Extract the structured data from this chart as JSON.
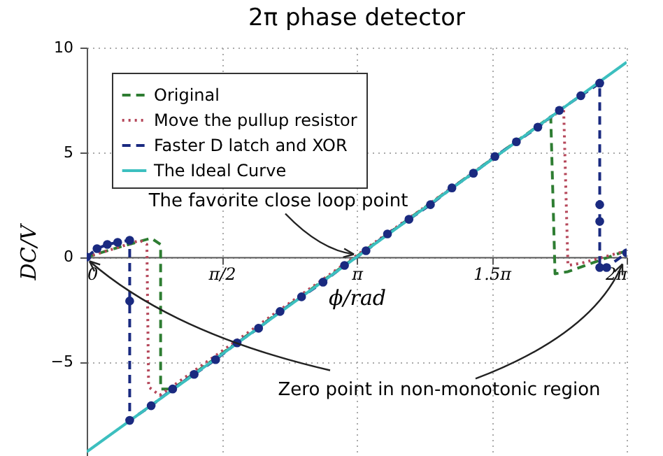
{
  "chart_data": {
    "type": "line",
    "title": "2π phase detector",
    "xlabel": "ϕ/rad",
    "ylabel": "DC/V",
    "xlim": [
      0,
      6.2832
    ],
    "ylim": [
      -9.5,
      10
    ],
    "xticks": [
      {
        "value": 0,
        "label": "0"
      },
      {
        "value": 1.5708,
        "label": "π/2"
      },
      {
        "value": 3.1416,
        "label": "π"
      },
      {
        "value": 4.7124,
        "label": "1.5π"
      },
      {
        "value": 6.2832,
        "label": "2π"
      }
    ],
    "yticks": [
      -5,
      0,
      5,
      10
    ],
    "grid": true,
    "legend": "top left",
    "annotations": [
      {
        "text": "The favorite close loop point",
        "x": 3.1416,
        "y": 0
      },
      {
        "text": "Zero point in non-monotonic region",
        "x": 0,
        "y": 0
      }
    ],
    "series": [
      {
        "name": "Original",
        "color": "#2e7d32",
        "line_style": "dashed",
        "marker": "none",
        "x": [
          0,
          0.4,
          0.75,
          0.86,
          0.86,
          1.0,
          5.4,
          5.45,
          5.6,
          6.2832
        ],
        "values": [
          0,
          0.5,
          0.9,
          0.6,
          -6.3,
          -6.3,
          6.7,
          -0.8,
          -0.7,
          0.3
        ]
      },
      {
        "name": "Move the pullup resistor",
        "color": "#b5475a",
        "line_style": "dotted",
        "marker": "none",
        "x": [
          0,
          0.4,
          0.62,
          0.7,
          0.72,
          0.85,
          5.55,
          5.6,
          5.75,
          6.2832
        ],
        "values": [
          0,
          0.5,
          0.8,
          0.6,
          -6.2,
          -6.6,
          7.1,
          -0.4,
          -0.3,
          0.3
        ]
      },
      {
        "name": "Faster D latch and XOR",
        "color": "#1a2a80",
        "line_style": "dashed",
        "marker": "circle",
        "x": [
          0,
          0.12,
          0.24,
          0.36,
          0.5,
          0.5,
          0.5,
          0.75,
          1,
          1.25,
          1.5,
          1.75,
          2,
          2.25,
          2.5,
          2.75,
          3,
          3.25,
          3.5,
          3.75,
          4,
          4.25,
          4.5,
          4.75,
          5,
          5.25,
          5.5,
          5.75,
          5.97,
          5.97,
          5.97,
          5.97,
          6.05,
          6.2832
        ],
        "values": [
          0,
          0.4,
          0.6,
          0.7,
          0.8,
          -2.1,
          -7.8,
          -7.1,
          -6.3,
          -5.6,
          -4.9,
          -4.1,
          -3.4,
          -2.6,
          -1.9,
          -1.2,
          -0.4,
          0.3,
          1.1,
          1.8,
          2.5,
          3.3,
          4,
          4.8,
          5.5,
          6.2,
          7,
          7.7,
          8.3,
          2.5,
          1.7,
          -0.5,
          -0.5,
          0.2
        ]
      },
      {
        "name": "The Ideal Curve",
        "color": "#3cbfbf",
        "line_style": "solid",
        "marker": "none",
        "x": [
          0,
          6.2832
        ],
        "values": [
          -9.3,
          9.3
        ]
      }
    ]
  }
}
